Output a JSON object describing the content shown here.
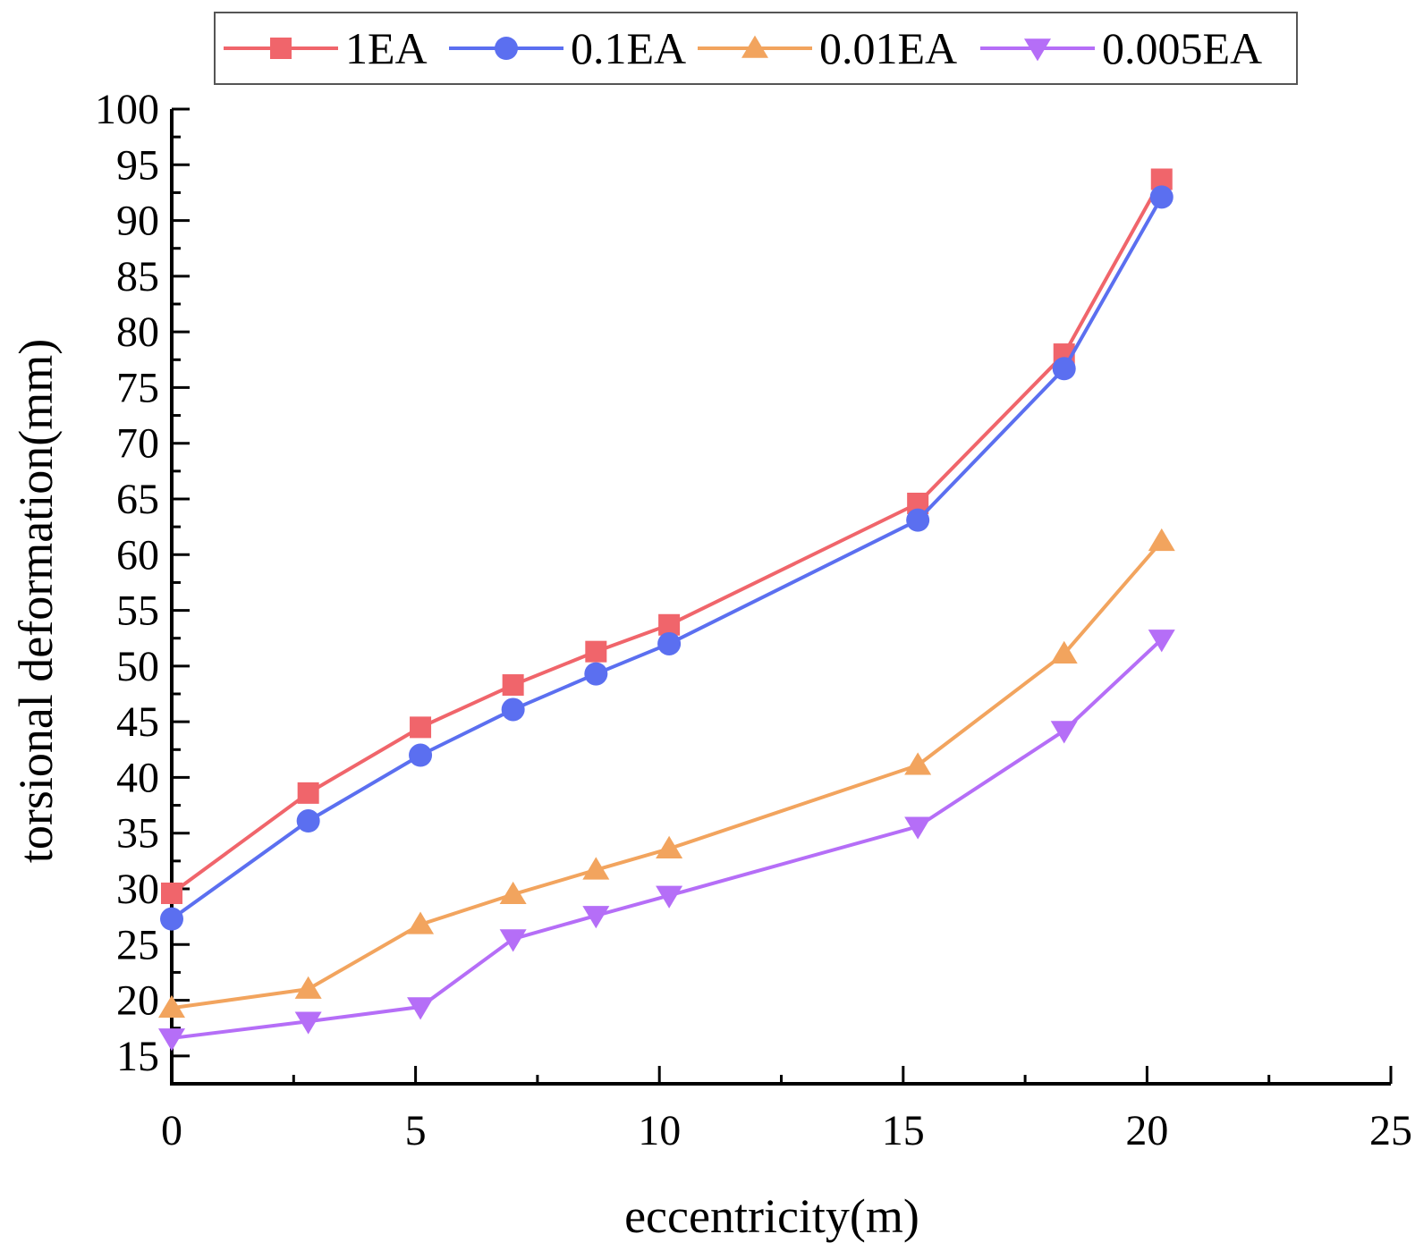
{
  "chart_data": {
    "type": "line",
    "title": "",
    "xlabel": "eccentricity(m)",
    "ylabel": "torsional deformation(mm)",
    "xlim": [
      0,
      25
    ],
    "ylim": [
      12.5,
      100
    ],
    "x_ticks": [
      0,
      5,
      10,
      15,
      20,
      25
    ],
    "y_ticks": [
      15,
      20,
      25,
      30,
      35,
      40,
      45,
      50,
      55,
      60,
      65,
      70,
      75,
      80,
      85,
      90,
      95,
      100
    ],
    "grid": false,
    "legend_position": "top",
    "x": [
      0,
      2.8,
      5.1,
      7.0,
      8.7,
      10.2,
      15.3,
      18.3,
      20.3
    ],
    "series": [
      {
        "name": "1EA",
        "color": "#f0656b",
        "marker": "square",
        "values": [
          29.6,
          38.6,
          44.5,
          48.3,
          51.3,
          53.7,
          64.6,
          78.0,
          93.7
        ]
      },
      {
        "name": "0.1EA",
        "color": "#5b6ff0",
        "marker": "circle",
        "values": [
          27.3,
          36.1,
          42.0,
          46.1,
          49.3,
          52.0,
          63.1,
          76.7,
          92.1
        ]
      },
      {
        "name": "0.01EA",
        "color": "#f2a45e",
        "marker": "triangle-up",
        "values": [
          19.3,
          21.0,
          26.8,
          29.5,
          31.7,
          33.6,
          41.1,
          51.1,
          61.2
        ]
      },
      {
        "name": "0.005EA",
        "color": "#b56ef7",
        "marker": "triangle-down",
        "values": [
          16.6,
          18.1,
          19.4,
          25.5,
          27.6,
          29.4,
          35.6,
          44.2,
          52.4
        ]
      }
    ]
  }
}
